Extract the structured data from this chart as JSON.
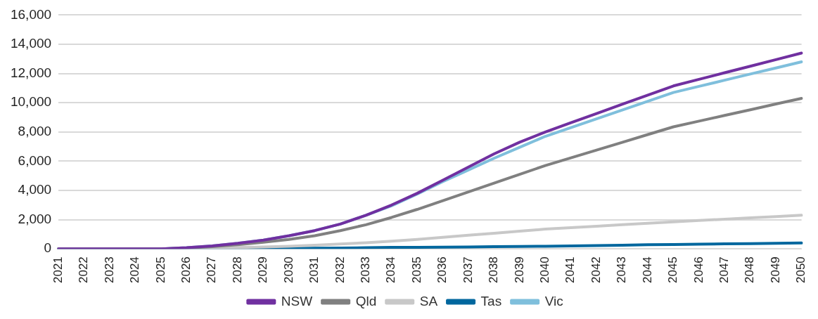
{
  "chart_data": {
    "type": "line",
    "categories": [
      "2021",
      "2022",
      "2023",
      "2024",
      "2025",
      "2026",
      "2027",
      "2028",
      "2029",
      "2030",
      "2031",
      "2032",
      "2033",
      "2034",
      "2035",
      "2036",
      "2037",
      "2038",
      "2039",
      "2040",
      "2041",
      "2042",
      "2043",
      "2044",
      "2045",
      "2046",
      "2047",
      "2048",
      "2049",
      "2050"
    ],
    "series": [
      {
        "name": "NSW",
        "color": "#7030a0",
        "values": [
          0,
          0,
          0,
          0,
          0,
          80,
          200,
          380,
          600,
          900,
          1250,
          1700,
          2300,
          3000,
          3800,
          4700,
          5600,
          6500,
          7300,
          8000,
          8630,
          9260,
          9890,
          10520,
          11150,
          11600,
          12050,
          12500,
          12950,
          13400
        ]
      },
      {
        "name": "Qld",
        "color": "#808080",
        "values": [
          0,
          0,
          0,
          0,
          0,
          60,
          150,
          280,
          450,
          650,
          900,
          1250,
          1650,
          2150,
          2700,
          3300,
          3900,
          4500,
          5100,
          5700,
          6230,
          6760,
          7290,
          7820,
          8350,
          8740,
          9130,
          9520,
          9910,
          10300
        ]
      },
      {
        "name": "SA",
        "color": "#c8c8c8",
        "values": [
          0,
          0,
          0,
          0,
          0,
          10,
          50,
          90,
          130,
          180,
          250,
          330,
          420,
          530,
          650,
          790,
          930,
          1070,
          1210,
          1350,
          1450,
          1550,
          1650,
          1750,
          1850,
          1940,
          2030,
          2120,
          2210,
          2300
        ]
      },
      {
        "name": "Tas",
        "color": "#00679e",
        "values": [
          0,
          0,
          0,
          0,
          0,
          0,
          10,
          20,
          30,
          40,
          50,
          60,
          80,
          100,
          110,
          120,
          130,
          150,
          160,
          180,
          200,
          230,
          250,
          280,
          300,
          320,
          340,
          360,
          380,
          400
        ]
      },
      {
        "name": "Vic",
        "color": "#7fbfdc",
        "values": [
          0,
          0,
          0,
          0,
          0,
          80,
          200,
          380,
          600,
          900,
          1250,
          1700,
          2300,
          2950,
          3750,
          4600,
          5400,
          6200,
          6950,
          7700,
          8300,
          8900,
          9500,
          10100,
          10700,
          11120,
          11540,
          11960,
          12380,
          12800
        ]
      }
    ],
    "ylim": [
      0,
      16000
    ],
    "yticks": [
      {
        "value": 0,
        "label": "0"
      },
      {
        "value": 2000,
        "label": "2,000"
      },
      {
        "value": 4000,
        "label": "4,000"
      },
      {
        "value": 6000,
        "label": "6,000"
      },
      {
        "value": 8000,
        "label": "8,000"
      },
      {
        "value": 10000,
        "label": "10,000"
      },
      {
        "value": 12000,
        "label": "12,000"
      },
      {
        "value": 14000,
        "label": "14,000"
      },
      {
        "value": 16000,
        "label": "16,000"
      }
    ],
    "grid": "y",
    "legend": "bottom",
    "marker": "none",
    "line_style": "solid"
  }
}
